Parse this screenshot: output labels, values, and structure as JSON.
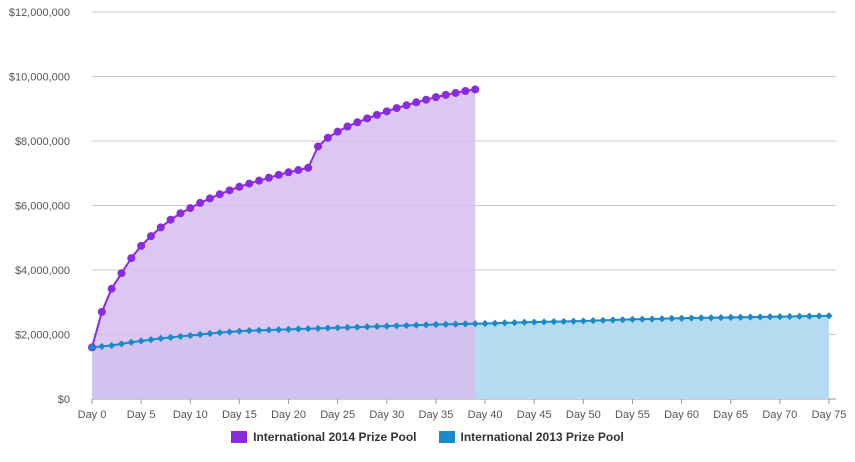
{
  "chart_data": {
    "type": "area",
    "title": "",
    "xlabel": "",
    "ylabel": "",
    "ylim": [
      0,
      12000000
    ],
    "xlim": [
      0,
      75
    ],
    "grid": true,
    "legend_position": "bottom-center",
    "y_ticks": [
      {
        "value": 0,
        "label": "$0"
      },
      {
        "value": 2000000,
        "label": "$2,000,000"
      },
      {
        "value": 4000000,
        "label": "$4,000,000"
      },
      {
        "value": 6000000,
        "label": "$6,000,000"
      },
      {
        "value": 8000000,
        "label": "$8,000,000"
      },
      {
        "value": 10000000,
        "label": "$10,000,000"
      },
      {
        "value": 12000000,
        "label": "$12,000,000"
      }
    ],
    "x_ticks": [
      {
        "value": 0,
        "label": "Day 0"
      },
      {
        "value": 5,
        "label": "Day 5"
      },
      {
        "value": 10,
        "label": "Day 10"
      },
      {
        "value": 15,
        "label": "Day 15"
      },
      {
        "value": 20,
        "label": "Day 20"
      },
      {
        "value": 25,
        "label": "Day 25"
      },
      {
        "value": 30,
        "label": "Day 30"
      },
      {
        "value": 35,
        "label": "Day 35"
      },
      {
        "value": 40,
        "label": "Day 40"
      },
      {
        "value": 45,
        "label": "Day 45"
      },
      {
        "value": 50,
        "label": "Day 50"
      },
      {
        "value": 55,
        "label": "Day 55"
      },
      {
        "value": 60,
        "label": "Day 60"
      },
      {
        "value": 65,
        "label": "Day 65"
      },
      {
        "value": 70,
        "label": "Day 70"
      },
      {
        "value": 75,
        "label": "Day 75"
      }
    ],
    "series": [
      {
        "name": "International 2014 Prize Pool",
        "color": "#8a2be2",
        "fill": "#d6bdf0",
        "marker": "circle",
        "values": [
          1600000,
          2700000,
          3420000,
          3900000,
          4370000,
          4750000,
          5050000,
          5320000,
          5560000,
          5760000,
          5920000,
          6080000,
          6220000,
          6350000,
          6470000,
          6580000,
          6680000,
          6770000,
          6860000,
          6950000,
          7030000,
          7100000,
          7170000,
          7830000,
          8100000,
          8290000,
          8450000,
          8580000,
          8700000,
          8810000,
          8920000,
          9020000,
          9110000,
          9200000,
          9280000,
          9360000,
          9430000,
          9490000,
          9550000,
          9600000
        ]
      },
      {
        "name": "International 2013 Prize Pool",
        "color": "#1a8bc9",
        "fill": "#b5dbf0",
        "marker": "diamond",
        "values": [
          1600000,
          1630000,
          1660000,
          1710000,
          1760000,
          1800000,
          1840000,
          1880000,
          1910000,
          1940000,
          1970000,
          2000000,
          2030000,
          2060000,
          2080000,
          2100000,
          2120000,
          2130000,
          2140000,
          2150000,
          2160000,
          2170000,
          2180000,
          2190000,
          2200000,
          2210000,
          2220000,
          2230000,
          2240000,
          2250000,
          2260000,
          2270000,
          2280000,
          2290000,
          2300000,
          2310000,
          2315000,
          2320000,
          2330000,
          2335000,
          2340000,
          2350000,
          2360000,
          2370000,
          2380000,
          2385000,
          2390000,
          2400000,
          2405000,
          2410000,
          2420000,
          2430000,
          2440000,
          2450000,
          2460000,
          2470000,
          2475000,
          2480000,
          2490000,
          2500000,
          2505000,
          2510000,
          2515000,
          2520000,
          2525000,
          2530000,
          2535000,
          2540000,
          2545000,
          2550000,
          2555000,
          2560000,
          2565000,
          2570000,
          2575000,
          2580000
        ]
      }
    ]
  }
}
